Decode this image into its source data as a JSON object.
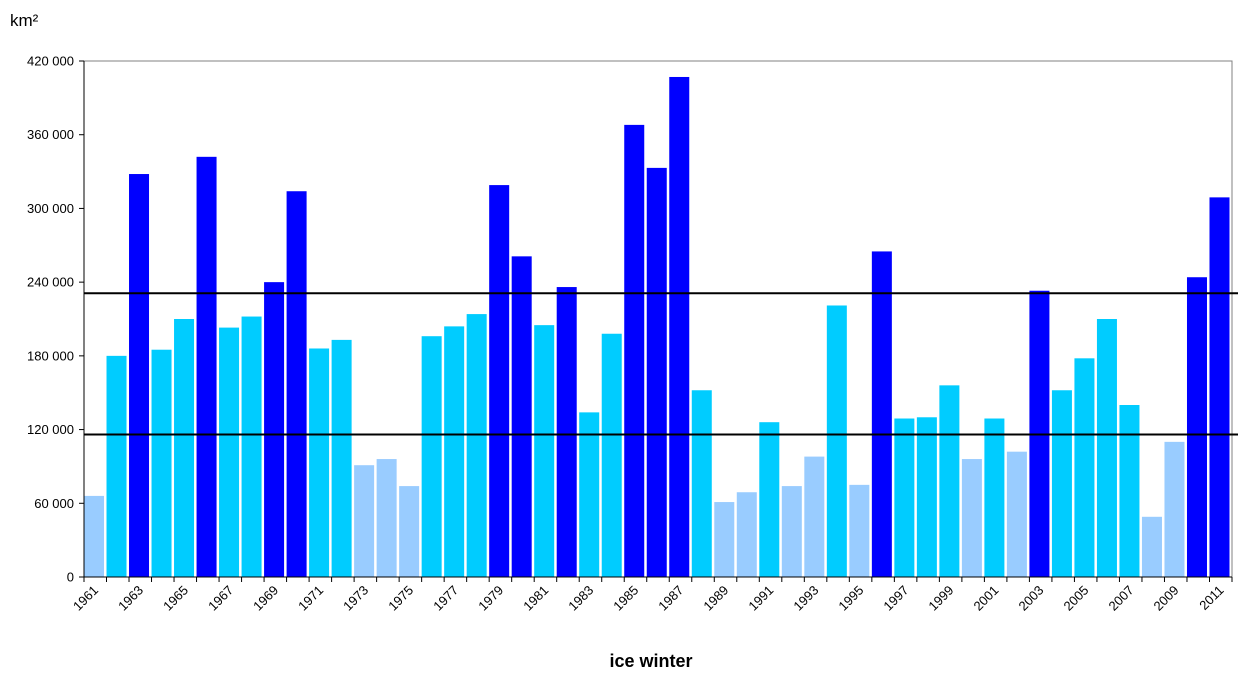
{
  "chart_data": {
    "type": "bar",
    "ylabel": "km²",
    "xlabel": "ice winter",
    "ylim": [
      0,
      420000
    ],
    "y_ticks": [
      "0",
      "60 000",
      "120 000",
      "180 000",
      "240 000",
      "300 000",
      "360 000",
      "420 000"
    ],
    "y_tick_values": [
      0,
      60000,
      120000,
      180000,
      240000,
      300000,
      360000,
      420000
    ],
    "x_tick_labels": [
      "1961",
      "1963",
      "1965",
      "1967",
      "1969",
      "1971",
      "1973",
      "1975",
      "1977",
      "1979",
      "1981",
      "1983",
      "1985",
      "1987",
      "1989",
      "1991",
      "1993",
      "1995",
      "1997",
      "1999",
      "2001",
      "2003",
      "2005",
      "2007",
      "2009",
      "2011"
    ],
    "categories": [
      1961,
      1962,
      1963,
      1964,
      1965,
      1966,
      1967,
      1968,
      1969,
      1970,
      1971,
      1972,
      1973,
      1974,
      1975,
      1976,
      1977,
      1978,
      1979,
      1980,
      1981,
      1982,
      1983,
      1984,
      1985,
      1986,
      1987,
      1988,
      1989,
      1990,
      1991,
      1992,
      1993,
      1994,
      1995,
      1996,
      1997,
      1998,
      1999,
      2000,
      2001,
      2002,
      2003,
      2004,
      2005,
      2006,
      2007,
      2008,
      2009,
      2010,
      2011
    ],
    "values": [
      66000,
      180000,
      328000,
      185000,
      210000,
      342000,
      203000,
      212000,
      240000,
      314000,
      186000,
      193000,
      91000,
      96000,
      74000,
      196000,
      204000,
      214000,
      319000,
      261000,
      205000,
      236000,
      134000,
      198000,
      368000,
      333000,
      407000,
      152000,
      61000,
      69000,
      126000,
      74000,
      98000,
      221000,
      75000,
      265000,
      129000,
      130000,
      156000,
      96000,
      129000,
      102000,
      233000,
      152000,
      178000,
      210000,
      140000,
      49000,
      110000,
      244000,
      309000
    ],
    "bar_colors": [
      "#99CCFF",
      "#00CCFF",
      "#0000FF",
      "#00CCFF",
      "#00CCFF",
      "#0000FF",
      "#00CCFF",
      "#00CCFF",
      "#0000FF",
      "#0000FF",
      "#00CCFF",
      "#00CCFF",
      "#99CCFF",
      "#99CCFF",
      "#99CCFF",
      "#00CCFF",
      "#00CCFF",
      "#00CCFF",
      "#0000FF",
      "#0000FF",
      "#00CCFF",
      "#0000FF",
      "#00CCFF",
      "#00CCFF",
      "#0000FF",
      "#0000FF",
      "#0000FF",
      "#00CCFF",
      "#99CCFF",
      "#99CCFF",
      "#00CCFF",
      "#99CCFF",
      "#99CCFF",
      "#00CCFF",
      "#99CCFF",
      "#0000FF",
      "#00CCFF",
      "#00CCFF",
      "#00CCFF",
      "#99CCFF",
      "#00CCFF",
      "#99CCFF",
      "#0000FF",
      "#00CCFF",
      "#00CCFF",
      "#00CCFF",
      "#00CCFF",
      "#99CCFF",
      "#99CCFF",
      "#0000FF",
      "#0000FF"
    ],
    "reference_lines": [
      231000,
      116000
    ],
    "grid": false,
    "legend": "none"
  }
}
